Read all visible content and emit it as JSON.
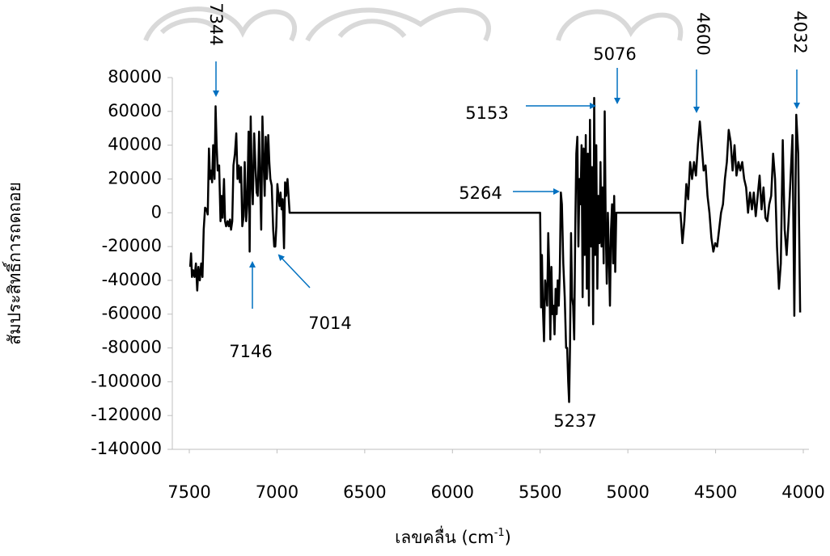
{
  "chart_data": {
    "type": "line",
    "x_label": [
      "เลขคลื่น (cm",
      "-1",
      ")"
    ],
    "y_label": "สัมประสิทธิ์การถดถอย",
    "xlim": [
      7500,
      4000
    ],
    "xticks": [
      7500,
      7000,
      6500,
      6000,
      5500,
      5000,
      4500,
      4000
    ],
    "ylim": [
      -140000,
      80000
    ],
    "yticks": [
      80000,
      60000,
      40000,
      20000,
      0,
      -20000,
      -40000,
      -60000,
      -80000,
      -100000,
      -120000,
      -140000
    ],
    "annotations": [
      "7344",
      "5076",
      "4600",
      "4032",
      "5153",
      "5264",
      "7146",
      "7014",
      "5237"
    ],
    "series": [
      {
        "color": "#000000",
        "x": [
          7495,
          7490,
          7485,
          7478,
          7470,
          7462,
          7455,
          7448,
          7440,
          7432,
          7425,
          7418,
          7410,
          7402,
          7395,
          7388,
          7382,
          7376,
          7370,
          7364,
          7356,
          7350,
          7344,
          7338,
          7330,
          7322,
          7316,
          7310,
          7302,
          7296,
          7290,
          7282,
          7275,
          7268,
          7262,
          7255,
          7248,
          7240,
          7232,
          7225,
          7218,
          7212,
          7205,
          7198,
          7190,
          7184,
          7176,
          7170,
          7162,
          7156,
          7150,
          7144,
          7138,
          7130,
          7122,
          7116,
          7110,
          7102,
          7096,
          7090,
          7083,
          7076,
          7070,
          7064,
          7058,
          7050,
          7044,
          7038,
          7030,
          7022,
          7016,
          7010,
          7004,
          6998,
          6992,
          6986,
          6980,
          6974,
          6968,
          6960,
          6954,
          6948,
          6940,
          6934,
          6928,
          6900,
          5500,
          5495,
          5490,
          5485,
          5478,
          5472,
          5466,
          5460,
          5454,
          5448,
          5442,
          5436,
          5430,
          5424,
          5418,
          5412,
          5406,
          5400,
          5394,
          5388,
          5382,
          5376,
          5368,
          5360,
          5352,
          5346,
          5340,
          5335,
          5330,
          5324,
          5318,
          5312,
          5306,
          5300,
          5294,
          5288,
          5282,
          5276,
          5270,
          5264,
          5258,
          5252,
          5246,
          5240,
          5234,
          5228,
          5222,
          5216,
          5210,
          5204,
          5198,
          5192,
          5186,
          5180,
          5174,
          5168,
          5162,
          5156,
          5150,
          5144,
          5138,
          5132,
          5126,
          5120,
          5114,
          5108,
          5102,
          5096,
          5090,
          5084,
          5078,
          5072,
          5066,
          5000,
          4700,
          4689,
          4678,
          4667,
          4656,
          4645,
          4634,
          4623,
          4612,
          4601,
          4590,
          4579,
          4568,
          4557,
          4546,
          4535,
          4524,
          4513,
          4502,
          4491,
          4480,
          4469,
          4458,
          4447,
          4436,
          4425,
          4414,
          4403,
          4392,
          4381,
          4370,
          4359,
          4348,
          4337,
          4326,
          4315,
          4304,
          4293,
          4282,
          4271,
          4260,
          4249,
          4238,
          4227,
          4216,
          4205,
          4194,
          4183,
          4172,
          4161,
          4150,
          4139,
          4128,
          4117,
          4106,
          4095,
          4084,
          4073,
          4062,
          4051,
          4040,
          4029,
          4018
        ],
        "values": [
          -32000,
          -24000,
          -38000,
          -34000,
          -38000,
          -30000,
          -46000,
          -32000,
          -40000,
          -30000,
          -38000,
          -10000,
          3000,
          2000,
          -1000,
          38000,
          20000,
          25000,
          18000,
          40000,
          20000,
          63000,
          40000,
          25000,
          28000,
          -5000,
          10000,
          -3000,
          20000,
          -5000,
          -8000,
          -5000,
          -8000,
          -4000,
          -10000,
          -5000,
          28000,
          35000,
          47000,
          20000,
          28000,
          18000,
          27000,
          -8000,
          -2000,
          30000,
          -5000,
          5000,
          48000,
          -23000,
          57000,
          20000,
          5000,
          47000,
          25000,
          12000,
          10000,
          48000,
          18000,
          -10000,
          57000,
          30000,
          10000,
          45000,
          20000,
          46000,
          30000,
          20000,
          16000,
          -10000,
          -20000,
          -20000,
          -8000,
          17000,
          10000,
          4000,
          12000,
          2000,
          8000,
          -21000,
          18000,
          10000,
          20000,
          10000,
          0,
          0,
          0,
          -56000,
          -25000,
          -55000,
          -76000,
          -40000,
          -45000,
          -55000,
          -12000,
          -35000,
          -75000,
          -32000,
          -60000,
          -55000,
          -72000,
          -45000,
          -60000,
          -40000,
          -55000,
          -35000,
          12000,
          5000,
          -30000,
          -50000,
          -80000,
          -80000,
          -100000,
          -112000,
          -80000,
          -12000,
          -50000,
          -55000,
          -75000,
          -10000,
          35000,
          45000,
          -20000,
          20000,
          5000,
          40000,
          -50000,
          38000,
          -25000,
          46000,
          -45000,
          35000,
          -55000,
          55000,
          -20000,
          27000,
          -66000,
          68000,
          -25000,
          40000,
          -45000,
          10000,
          -18000,
          30000,
          -20000,
          15000,
          -30000,
          60000,
          -10000,
          -42000,
          0,
          -25000,
          -55000,
          -10000,
          5000,
          -30000,
          10000,
          -35000,
          0,
          0,
          0,
          -18000,
          -5000,
          17000,
          8000,
          30000,
          20000,
          30000,
          22000,
          40000,
          54000,
          40000,
          25000,
          28000,
          10000,
          0,
          -15000,
          -23000,
          -18000,
          -20000,
          -10000,
          0,
          5000,
          20000,
          30000,
          49000,
          42000,
          25000,
          40000,
          22000,
          30000,
          25000,
          30000,
          20000,
          15000,
          0,
          12000,
          2000,
          12000,
          -2000,
          10000,
          22000,
          2000,
          15000,
          -3000,
          -5000,
          5000,
          10000,
          35000,
          20000,
          -20000,
          -45000,
          -30000,
          43000,
          -10000,
          -25000,
          -5000,
          20000,
          46000,
          -61000,
          58000,
          35000,
          -59000
        ]
      }
    ]
  }
}
